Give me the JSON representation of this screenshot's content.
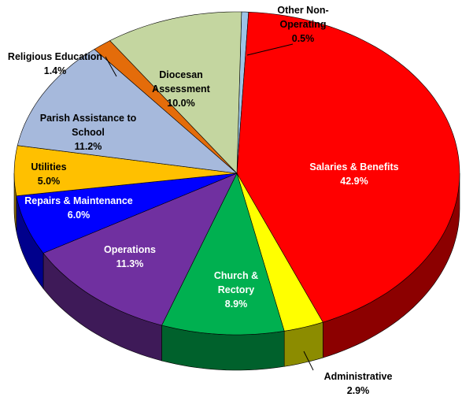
{
  "chart_data": {
    "type": "pie",
    "categories": [
      "Other Non-Operating",
      "Salaries & Benefits",
      "Administrative",
      "Church & Rectory",
      "Operations",
      "Repairs & Maintenance",
      "Utilities",
      "Parish Assistance to School",
      "Religious Education",
      "Diocesan Assessment"
    ],
    "values": [
      0.5,
      42.9,
      2.9,
      8.9,
      11.3,
      6.0,
      5.0,
      11.2,
      1.4,
      10.0
    ],
    "value_labels": [
      "0.5%",
      "42.9%",
      "2.9%",
      "8.9%",
      "11.3%",
      "6.0%",
      "5.0%",
      "11.2%",
      "1.4%",
      "10.0%"
    ],
    "colors": [
      "#9dc3e6",
      "#ff0000",
      "#ffff00",
      "#00b050",
      "#7030a0",
      "#0000ff",
      "#ffc000",
      "#a6b9dc",
      "#e46c0a",
      "#c4d6a0"
    ]
  }
}
